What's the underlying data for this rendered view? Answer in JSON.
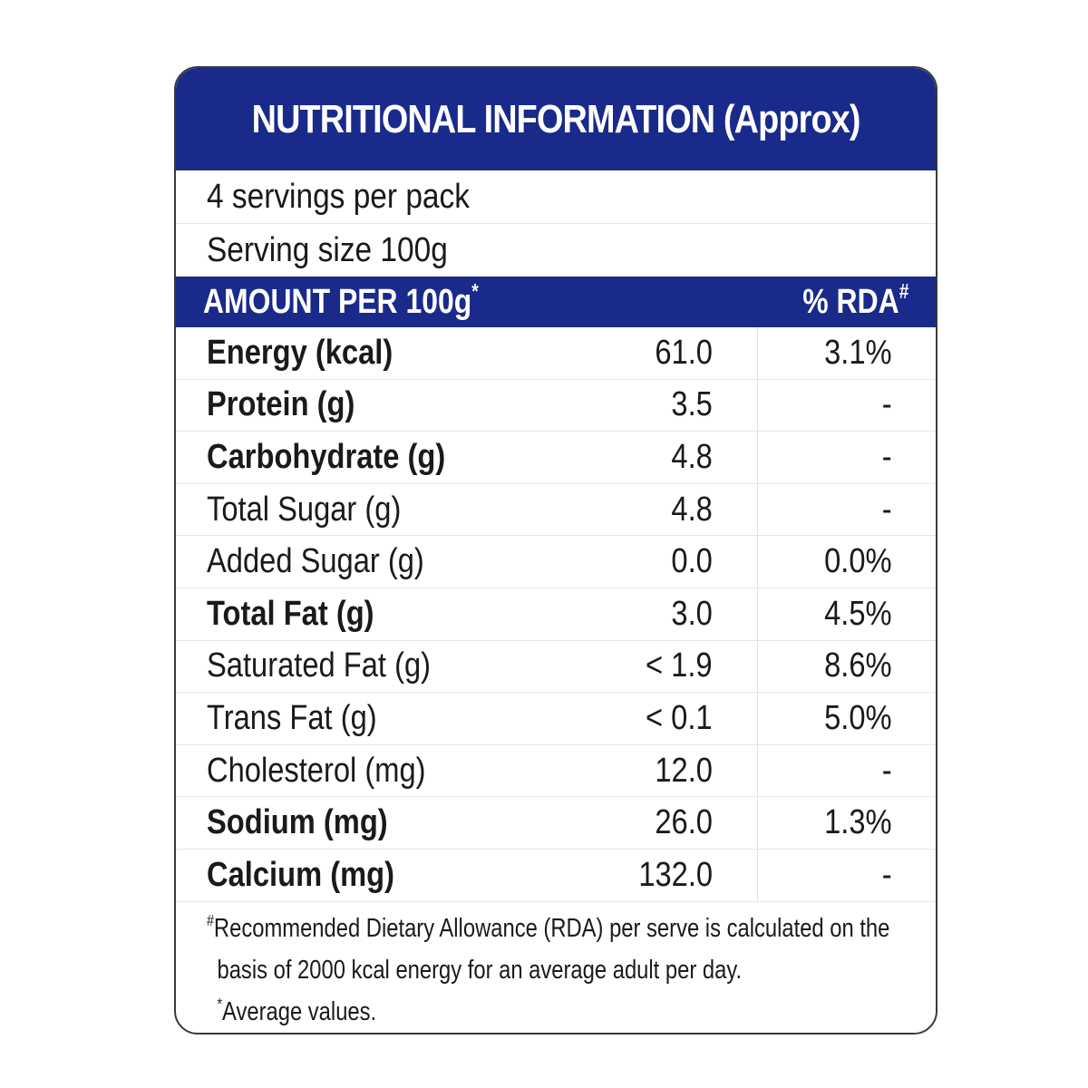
{
  "label": {
    "title": "NUTRITIONAL INFORMATION  (Approx)",
    "servings_per_pack": "4 servings per pack",
    "serving_size": "Serving size 100g",
    "header": {
      "amount_label": "AMOUNT PER 100g",
      "amount_marker": "*",
      "rda_label": "% RDA",
      "rda_marker": "#"
    },
    "rows": [
      {
        "name": "Energy (kcal)",
        "amount": "61.0",
        "rda": "3.1%",
        "bold": true
      },
      {
        "name": "Protein (g)",
        "amount": "3.5",
        "rda": "-",
        "bold": true
      },
      {
        "name": "Carbohydrate (g)",
        "amount": "4.8",
        "rda": "-",
        "bold": true
      },
      {
        "name": "Total Sugar (g)",
        "amount": "4.8",
        "rda": "-",
        "bold": false
      },
      {
        "name": "Added Sugar (g)",
        "amount": "0.0",
        "rda": "0.0%",
        "bold": false
      },
      {
        "name": "Total Fat (g)",
        "amount": "3.0",
        "rda": "4.5%",
        "bold": true
      },
      {
        "name": "Saturated Fat (g)",
        "amount": "< 1.9",
        "rda": "8.6%",
        "bold": false
      },
      {
        "name": "Trans Fat (g)",
        "amount": "< 0.1",
        "rda": "5.0%",
        "bold": false
      },
      {
        "name": "Cholesterol (mg)",
        "amount": "12.0",
        "rda": "-",
        "bold": false
      },
      {
        "name": "Sodium (mg)",
        "amount": "26.0",
        "rda": "1.3%",
        "bold": true
      },
      {
        "name": "Calcium (mg)",
        "amount": "132.0",
        "rda": "-",
        "bold": true
      }
    ],
    "footnotes": {
      "rda_marker": "#",
      "rda_line1": "Recommended Dietary Allowance (RDA) per serve is calculated on the",
      "rda_line2": "basis of 2000 kcal energy for an average adult per day.",
      "avg_marker": "*",
      "avg_text": "Average values."
    }
  },
  "colors": {
    "band": "#1a2a8a",
    "text": "#1a1a1a",
    "border": "#3a3a3a"
  }
}
